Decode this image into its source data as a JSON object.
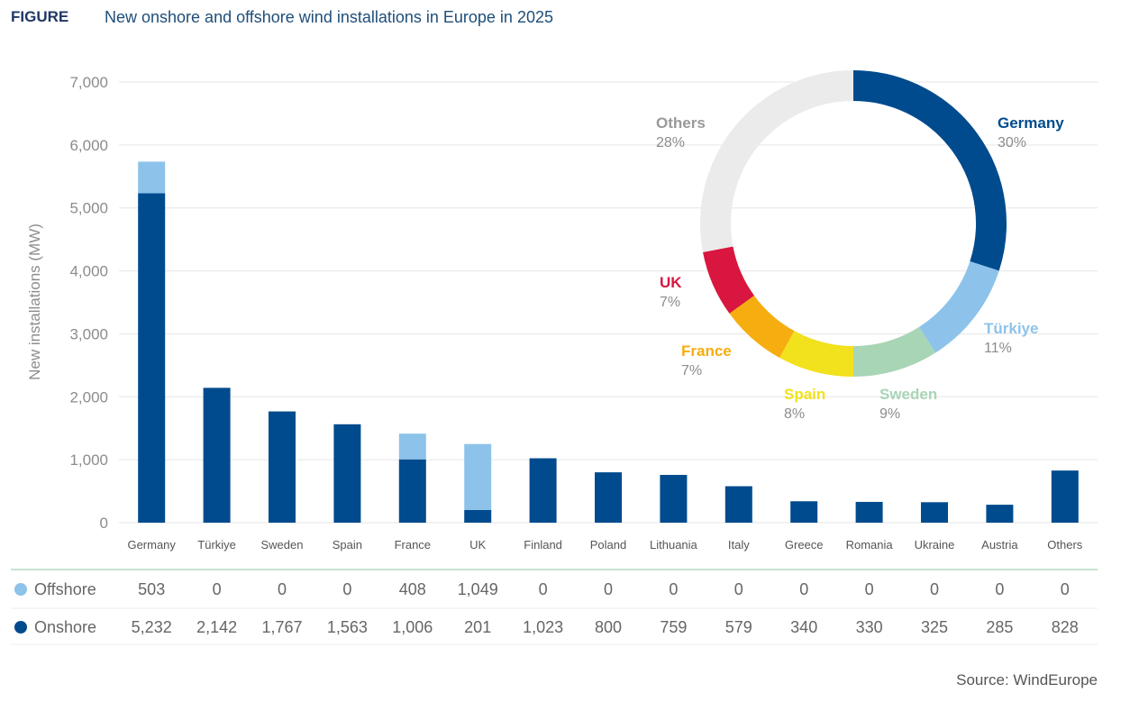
{
  "header": {
    "label": "FIGURE",
    "title": "New onshore and offshore wind installations in Europe in 2025"
  },
  "source": "Source: WindEurope",
  "chart_data": [
    {
      "type": "bar",
      "stacked": true,
      "ylabel": "New installations (MW)",
      "ylim": [
        0,
        7000
      ],
      "yticks": [
        "0",
        "1,000",
        "2,000",
        "3,000",
        "4,000",
        "5,000",
        "6,000",
        "7,000"
      ],
      "categories": [
        "Germany",
        "Türkiye",
        "Sweden",
        "Spain",
        "France",
        "UK",
        "Finland",
        "Poland",
        "Lithuania",
        "Italy",
        "Greece",
        "Romania",
        "Ukraine",
        "Austria",
        "Others"
      ],
      "series": [
        {
          "name": "Onshore",
          "color": "#004b8d",
          "values": [
            5232,
            2142,
            1767,
            1563,
            1006,
            201,
            1023,
            800,
            759,
            579,
            340,
            330,
            325,
            285,
            828
          ],
          "labels": [
            "5,232",
            "2,142",
            "1,767",
            "1,563",
            "1,006",
            "201",
            "1,023",
            "800",
            "759",
            "579",
            "340",
            "330",
            "325",
            "285",
            "828"
          ]
        },
        {
          "name": "Offshore",
          "color": "#8dc3ea",
          "values": [
            503,
            0,
            0,
            0,
            408,
            1049,
            0,
            0,
            0,
            0,
            0,
            0,
            0,
            0,
            0
          ],
          "labels": [
            "503",
            "0",
            "0",
            "0",
            "408",
            "1,049",
            "0",
            "0",
            "0",
            "0",
            "0",
            "0",
            "0",
            "0",
            "0"
          ]
        }
      ],
      "grid": true
    },
    {
      "type": "pie",
      "donut": true,
      "slices": [
        {
          "name": "Germany",
          "value": 30,
          "label": "30%",
          "color": "#004b8d"
        },
        {
          "name": "Türkiye",
          "value": 11,
          "label": "11%",
          "color": "#8dc3ea"
        },
        {
          "name": "Sweden",
          "value": 9,
          "label": "9%",
          "color": "#a8d5b5"
        },
        {
          "name": "Spain",
          "value": 8,
          "label": "8%",
          "color": "#f2e11d"
        },
        {
          "name": "France",
          "value": 7,
          "label": "7%",
          "color": "#f6ad0f"
        },
        {
          "name": "UK",
          "value": 7,
          "label": "7%",
          "color": "#d9163f"
        },
        {
          "name": "Others",
          "value": 28,
          "label": "28%",
          "color": "#ebebeb"
        }
      ]
    }
  ],
  "colors": {
    "gridline": "#e6e6e6",
    "table_rule": "#c7e3cf",
    "others_label": "#999999"
  }
}
